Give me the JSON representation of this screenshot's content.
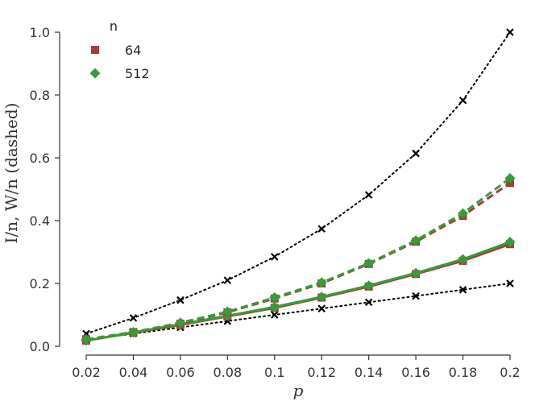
{
  "chart_data": {
    "type": "line",
    "xlabel": "p",
    "ylabel": "I/n, W/n (dashed)",
    "xlim": [
      0.02,
      0.2
    ],
    "ylim": [
      0.0,
      1.0
    ],
    "x_ticks": [
      "0.02",
      "0.04",
      "0.06",
      "0.08",
      "0.1",
      "0.12",
      "0.14",
      "0.16",
      "0.18",
      "0.2"
    ],
    "y_ticks": [
      "0.0",
      "0.2",
      "0.4",
      "0.6",
      "0.8",
      "1.0"
    ],
    "x": [
      0.02,
      0.04,
      0.06,
      0.08,
      0.1,
      0.12,
      0.14,
      0.16,
      0.18,
      0.2
    ],
    "grid": false,
    "legend": {
      "title": "n",
      "placement": "top-left",
      "entries": [
        {
          "label": "64",
          "marker": "square",
          "color": "#a0403a"
        },
        {
          "label": "512",
          "marker": "diamond",
          "color": "#3a9a3a"
        }
      ]
    },
    "series": [
      {
        "id": "ref-upper",
        "style": "dotted",
        "marker": "x",
        "color": "#000000",
        "values": [
          0.04,
          0.09,
          0.147,
          0.21,
          0.285,
          0.374,
          0.482,
          0.614,
          0.783,
          1.0
        ]
      },
      {
        "id": "ref-lower",
        "style": "dotted",
        "marker": "x",
        "color": "#000000",
        "values": [
          0.02,
          0.04,
          0.06,
          0.08,
          0.1,
          0.12,
          0.14,
          0.16,
          0.18,
          0.2
        ]
      },
      {
        "name": "64",
        "style": "solid",
        "marker": "square",
        "color": "#a0403a",
        "values": [
          0.018,
          0.043,
          0.068,
          0.095,
          0.122,
          0.155,
          0.19,
          0.23,
          0.272,
          0.325
        ]
      },
      {
        "name": "512",
        "style": "solid",
        "marker": "diamond",
        "color": "#3a9a3a",
        "values": [
          0.018,
          0.044,
          0.07,
          0.097,
          0.125,
          0.157,
          0.193,
          0.233,
          0.277,
          0.332
        ]
      },
      {
        "name": "64",
        "style": "dashed",
        "marker": "square",
        "color": "#a0403a",
        "values": [
          0.022,
          0.045,
          0.072,
          0.108,
          0.152,
          0.2,
          0.262,
          0.333,
          0.415,
          0.52
        ]
      },
      {
        "name": "512",
        "style": "dashed",
        "marker": "diamond",
        "color": "#3a9a3a",
        "values": [
          0.022,
          0.045,
          0.075,
          0.11,
          0.155,
          0.203,
          0.264,
          0.337,
          0.423,
          0.535
        ]
      }
    ]
  }
}
